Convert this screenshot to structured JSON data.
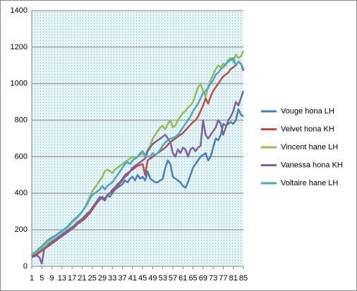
{
  "chart_data": {
    "type": "line",
    "x": [
      1,
      2,
      3,
      4,
      5,
      6,
      7,
      8,
      9,
      10,
      11,
      12,
      13,
      14,
      15,
      16,
      17,
      18,
      19,
      20,
      21,
      22,
      23,
      24,
      25,
      26,
      27,
      28,
      29,
      30,
      31,
      32,
      33,
      34,
      35,
      36,
      37,
      38,
      39,
      40,
      41,
      42,
      43,
      44,
      45,
      46,
      47,
      48,
      49,
      50,
      51,
      52,
      53,
      54,
      55,
      56,
      57,
      58,
      59,
      60,
      61,
      62,
      63,
      64,
      65,
      66,
      67,
      68,
      69,
      70,
      71,
      72,
      73,
      74,
      75,
      76,
      77,
      78,
      79,
      80,
      81,
      82,
      83,
      84,
      85
    ],
    "xlim": [
      1,
      85
    ],
    "xticks": [
      1,
      5,
      9,
      13,
      17,
      21,
      25,
      29,
      33,
      37,
      41,
      45,
      49,
      53,
      57,
      61,
      65,
      69,
      73,
      77,
      81,
      85
    ],
    "ylim": [
      0,
      1400
    ],
    "yticks": [
      0,
      200,
      400,
      600,
      800,
      1000,
      1200,
      1400
    ],
    "grid": true,
    "legend": "right",
    "series": [
      {
        "name": "Vouge hona LH",
        "color": "#4a7ebb",
        "values": [
          60,
          65,
          70,
          80,
          90,
          100,
          110,
          125,
          135,
          145,
          155,
          165,
          175,
          185,
          195,
          205,
          215,
          225,
          240,
          250,
          260,
          275,
          290,
          300,
          320,
          340,
          360,
          380,
          370,
          360,
          390,
          380,
          400,
          420,
          430,
          440,
          450,
          470,
          460,
          480,
          490,
          470,
          500,
          480,
          490,
          470,
          520,
          480,
          470,
          460,
          460,
          470,
          480,
          540,
          580,
          560,
          490,
          480,
          470,
          460,
          440,
          430,
          460,
          500,
          540,
          560,
          580,
          600,
          610,
          620,
          580,
          600,
          650,
          700,
          690,
          720,
          780,
          770,
          780,
          790,
          780,
          800,
          860,
          830,
          820
        ]
      },
      {
        "name": "Velvet hona KH",
        "color": "#be4b48",
        "values": [
          55,
          60,
          65,
          75,
          85,
          95,
          105,
          115,
          125,
          135,
          145,
          155,
          165,
          175,
          185,
          195,
          205,
          215,
          230,
          240,
          250,
          260,
          275,
          290,
          310,
          330,
          350,
          365,
          380,
          370,
          390,
          400,
          410,
          425,
          440,
          455,
          470,
          490,
          500,
          520,
          530,
          540,
          550,
          555,
          560,
          500,
          580,
          590,
          600,
          610,
          620,
          630,
          640,
          650,
          665,
          680,
          690,
          700,
          710,
          720,
          730,
          745,
          760,
          775,
          790,
          800,
          820,
          850,
          880,
          920,
          890,
          930,
          960,
          980,
          1000,
          1020,
          1040,
          1050,
          1060,
          1080,
          1090,
          1100,
          1120,
          1110,
          1070
        ]
      },
      {
        "name": "Vincent hane LH",
        "color": "#98b954",
        "values": [
          65,
          70,
          80,
          90,
          100,
          115,
          125,
          140,
          150,
          160,
          170,
          180,
          190,
          200,
          210,
          225,
          240,
          250,
          265,
          280,
          300,
          320,
          350,
          380,
          410,
          430,
          450,
          470,
          490,
          520,
          530,
          520,
          510,
          530,
          540,
          550,
          560,
          570,
          580,
          590,
          600,
          590,
          600,
          610,
          620,
          600,
          640,
          660,
          700,
          720,
          740,
          760,
          770,
          750,
          780,
          800,
          760,
          770,
          800,
          820,
          840,
          850,
          870,
          880,
          900,
          940,
          980,
          1000,
          960,
          930,
          980,
          1020,
          1050,
          1080,
          1100,
          1090,
          1110,
          1100,
          1130,
          1140,
          1120,
          1160,
          1140,
          1150,
          1180
        ]
      },
      {
        "name": "Vanessa hona KH",
        "color": "#7d60a0",
        "values": [
          50,
          55,
          60,
          50,
          15,
          100,
          110,
          120,
          130,
          140,
          150,
          160,
          170,
          180,
          190,
          200,
          210,
          220,
          235,
          245,
          260,
          270,
          285,
          300,
          320,
          340,
          355,
          370,
          380,
          360,
          390,
          400,
          420,
          430,
          450,
          460,
          480,
          500,
          510,
          520,
          540,
          550,
          560,
          570,
          580,
          590,
          630,
          650,
          670,
          680,
          690,
          700,
          710,
          720,
          700,
          680,
          620,
          600,
          640,
          620,
          650,
          640,
          600,
          640,
          650,
          630,
          650,
          660,
          800,
          720,
          700,
          720,
          740,
          760,
          800,
          780,
          720,
          760,
          800,
          820,
          850,
          900,
          880,
          920,
          960
        ]
      },
      {
        "name": "Voltaire hane LH",
        "color": "#46aac5",
        "values": [
          65,
          75,
          85,
          100,
          110,
          125,
          140,
          150,
          160,
          165,
          175,
          185,
          195,
          205,
          215,
          230,
          245,
          260,
          270,
          285,
          300,
          320,
          340,
          370,
          390,
          400,
          410,
          420,
          440,
          420,
          440,
          450,
          460,
          480,
          500,
          520,
          540,
          560,
          570,
          560,
          580,
          590,
          600,
          620,
          630,
          610,
          600,
          600,
          620,
          610,
          620,
          640,
          660,
          680,
          690,
          700,
          700,
          710,
          720,
          740,
          760,
          780,
          800,
          820,
          850,
          870,
          890,
          920,
          950,
          960,
          980,
          1000,
          1020,
          1050,
          1060,
          1080,
          1090,
          1110,
          1120,
          1130,
          1140,
          1100,
          1120,
          1110,
          1080
        ]
      }
    ]
  }
}
